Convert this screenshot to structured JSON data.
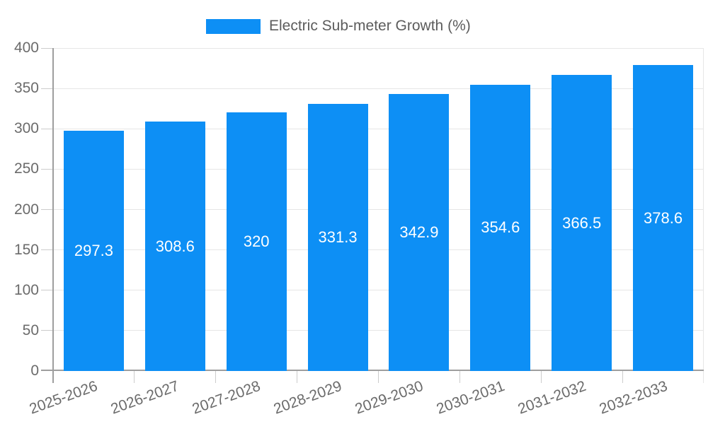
{
  "chart_data": {
    "type": "bar",
    "title": "Electric Sub-meter Growth (%)",
    "legend_label": "Electric Sub-meter Growth (%)",
    "legend_position": "top",
    "categories": [
      "2025-2026",
      "2026-2027",
      "2027-2028",
      "2028-2029",
      "2029-2030",
      "2030-2031",
      "2031-2032",
      "2032-2033"
    ],
    "values": [
      297.3,
      308.6,
      320,
      331.3,
      342.9,
      354.6,
      366.5,
      378.6
    ],
    "value_labels": [
      "297.3",
      "308.6",
      "320",
      "331.3",
      "342.9",
      "354.6",
      "366.5",
      "378.6"
    ],
    "xlabel": "",
    "ylabel": "",
    "ylim": [
      0,
      400
    ],
    "yticks": [
      0,
      50,
      100,
      150,
      200,
      250,
      300,
      350,
      400
    ],
    "grid": true,
    "bar_color": "#0d8ff5",
    "grid_color": "#e6e6e6",
    "tick_color": "#cccccc",
    "axis_color": "#9e9e9e",
    "border_color": "#e6e6e6",
    "label_color": "#6b6b6b",
    "legend_text_color": "#5c5c5c",
    "value_label_color": "#ffffff"
  }
}
